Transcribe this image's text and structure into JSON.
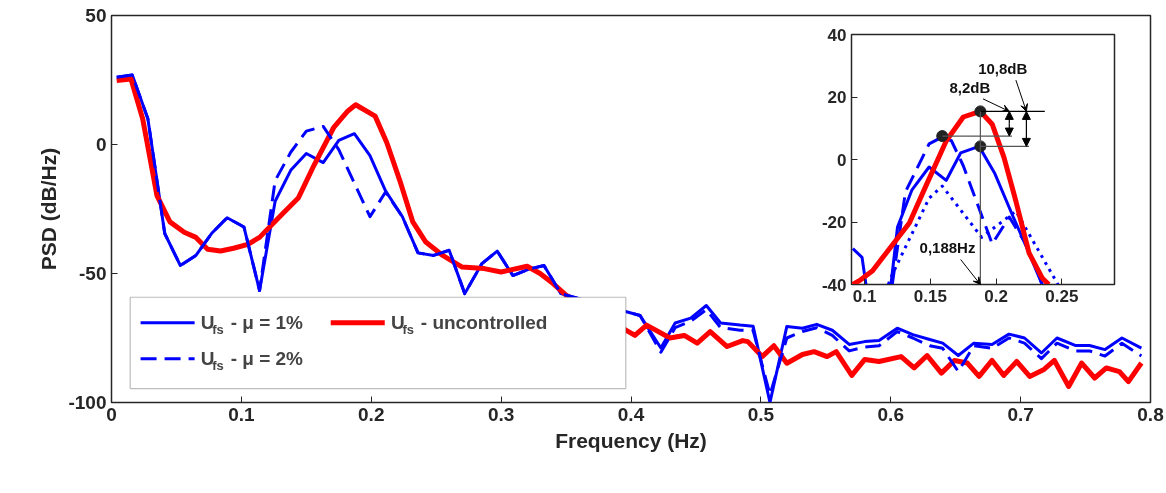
{
  "chart_data": [
    {
      "type": "line",
      "xlabel": "Frequency (Hz)",
      "ylabel": "PSD (dB/Hz)",
      "xlim": [
        0,
        0.8
      ],
      "ylim": [
        -100,
        50
      ],
      "xticks": [
        0,
        0.1,
        0.2,
        0.3,
        0.4,
        0.5,
        0.6,
        0.7,
        0.8
      ],
      "yticks": [
        -100,
        -50,
        0,
        50
      ],
      "grid": false,
      "legend": "bottom left",
      "marker": "none",
      "series": [
        {
          "name": "U$_{fs}$ - μ = 1%",
          "color": "#0000ff",
          "line_style": "solid",
          "x": [
            0.004,
            0.016,
            0.028,
            0.041,
            0.053,
            0.065,
            0.077,
            0.089,
            0.102,
            0.114,
            0.126,
            0.138,
            0.15,
            0.163,
            0.175,
            0.187,
            0.199,
            0.211,
            0.224,
            0.236,
            0.248,
            0.26,
            0.272,
            0.285,
            0.297,
            0.309,
            0.321,
            0.333,
            0.346,
            0.407,
            0.423,
            0.434,
            0.446,
            0.458,
            0.469,
            0.484,
            0.494,
            0.507,
            0.52,
            0.532,
            0.543,
            0.555,
            0.568,
            0.58,
            0.591,
            0.605,
            0.617,
            0.63,
            0.64,
            0.652,
            0.664,
            0.678,
            0.691,
            0.703,
            0.716,
            0.728,
            0.742,
            0.753,
            0.765,
            0.778,
            0.793
          ],
          "values": [
            26.1,
            26.9,
            10,
            -34.5,
            -46.9,
            -43,
            -34.5,
            -28.4,
            -32,
            -56.6,
            -22,
            -10,
            -3.5,
            -7,
            1.6,
            4.2,
            -4.3,
            -18,
            -28,
            -42,
            -43,
            -41,
            -57.8,
            -46.3,
            -41.3,
            -50.8,
            -48.4,
            -46.9,
            -57.8,
            -66.3,
            -78.9,
            -69.2,
            -67.3,
            -62.4,
            -69.2,
            -70,
            -70.4,
            -100,
            -70.5,
            -71.2,
            -69.7,
            -72,
            -77.5,
            -76.4,
            -76,
            -71.2,
            -73.7,
            -75.6,
            -77,
            -81.8,
            -77,
            -77.5,
            -73.5,
            -75,
            -80.8,
            -75,
            -77.9,
            -77.9,
            -79.5,
            -75,
            -78.9
          ]
        },
        {
          "name": "U$_{fs}$ - uncontrolled",
          "color": "#ff0000",
          "line_style": "solid",
          "x": [
            0.004,
            0.015,
            0.024,
            0.035,
            0.045,
            0.056,
            0.065,
            0.074,
            0.084,
            0.094,
            0.105,
            0.114,
            0.13,
            0.144,
            0.155,
            0.171,
            0.182,
            0.188,
            0.203,
            0.212,
            0.222,
            0.232,
            0.242,
            0.255,
            0.27,
            0.287,
            0.3,
            0.32,
            0.33,
            0.34,
            0.35,
            0.403,
            0.412,
            0.43,
            0.441,
            0.451,
            0.461,
            0.474,
            0.486,
            0.49,
            0.501,
            0.51,
            0.52,
            0.532,
            0.541,
            0.551,
            0.558,
            0.57,
            0.58,
            0.591,
            0.608,
            0.618,
            0.628,
            0.639,
            0.649,
            0.659,
            0.668,
            0.678,
            0.687,
            0.697,
            0.707,
            0.718,
            0.726,
            0.737,
            0.747,
            0.757,
            0.766,
            0.776,
            0.783,
            0.793
          ],
          "values": [
            24.8,
            25.4,
            10,
            -19.8,
            -30,
            -34,
            -36,
            -40.6,
            -41.3,
            -40.2,
            -38.7,
            -36,
            -27.7,
            -20.6,
            -9,
            6.5,
            13,
            15.4,
            11,
            0.7,
            -14,
            -30,
            -37.8,
            -43,
            -47.5,
            -48.1,
            -49.4,
            -47.2,
            -50,
            -53.9,
            -58.4,
            -74,
            -70,
            -75,
            -74,
            -77,
            -72.5,
            -78.3,
            -76,
            -76.4,
            -82.2,
            -78,
            -84.8,
            -81.4,
            -80.3,
            -82.2,
            -80.3,
            -89.5,
            -83.3,
            -84.1,
            -82.2,
            -86.6,
            -81.8,
            -88.6,
            -83.7,
            -84.7,
            -89.9,
            -83.7,
            -89.5,
            -84.1,
            -89.9,
            -87.2,
            -83.7,
            -93.8,
            -84.7,
            -90.5,
            -86.6,
            -88,
            -91.9,
            -84.7
          ]
        },
        {
          "name": "U$_{fs}$ - μ = 2%",
          "color": "#0000ff",
          "line_style": "dashed",
          "x": [
            0.004,
            0.016,
            0.028,
            0.041,
            0.053,
            0.065,
            0.077,
            0.089,
            0.102,
            0.114,
            0.126,
            0.138,
            0.15,
            0.163,
            0.175,
            0.187,
            0.199,
            0.211,
            0.224,
            0.236,
            0.248,
            0.26,
            0.272,
            0.285,
            0.297,
            0.309,
            0.321,
            0.333,
            0.346,
            0.407,
            0.423,
            0.434,
            0.446,
            0.458,
            0.469,
            0.484,
            0.494,
            0.507,
            0.52,
            0.532,
            0.543,
            0.555,
            0.568,
            0.58,
            0.591,
            0.605,
            0.617,
            0.63,
            0.64,
            0.652,
            0.664,
            0.678,
            0.691,
            0.703,
            0.716,
            0.728,
            0.742,
            0.753,
            0.765,
            0.778,
            0.793
          ],
          "values": [
            26.1,
            26.9,
            10,
            -34.5,
            -46.9,
            -43,
            -34.5,
            -28.4,
            -32,
            -56.6,
            -14,
            -3,
            5.2,
            7,
            -2,
            -15,
            -28,
            -18.4,
            -28,
            -42,
            -43,
            -41,
            -57.8,
            -46.3,
            -41.3,
            -50.8,
            -48.4,
            -46.9,
            -57.8,
            -66.3,
            -80.5,
            -71,
            -68.5,
            -64,
            -71,
            -72,
            -72,
            -97,
            -75,
            -72.5,
            -71,
            -74,
            -80,
            -78.5,
            -78,
            -72.5,
            -75,
            -78,
            -79,
            -88,
            -78,
            -79,
            -75,
            -77,
            -83,
            -77,
            -80,
            -80,
            -82,
            -77,
            -82
          ]
        }
      ]
    },
    {
      "type": "line",
      "xlim": [
        0.09,
        0.29
      ],
      "ylim": [
        -40,
        40
      ],
      "xticks": [
        0.1,
        0.15,
        0.2,
        0.25
      ],
      "yticks": [
        -40,
        -20,
        0,
        20,
        40
      ],
      "grid": false,
      "annotations": [
        "8,2dB",
        "10,8dB",
        "0,188Hz"
      ],
      "series": [
        {
          "color": "#0000ff",
          "line_style": "solid",
          "marker": "none",
          "x": [
            0.091,
            0.098,
            0.101,
            null,
            0.12,
            0.125,
            0.136,
            0.149,
            0.162,
            0.173,
            0.187,
            0.199,
            0.213,
            0.223,
            0.235
          ],
          "values": [
            -28.5,
            -31.3,
            -40,
            null,
            -40,
            -21.6,
            -9.7,
            -2.4,
            -6.7,
            2.1,
            4.2,
            -4.5,
            -18.4,
            -28,
            -40
          ]
        },
        {
          "color": "#0000ff",
          "line_style": "dashed",
          "marker": "none",
          "x": [
            0.121,
            0.131,
            0.149,
            0.159,
            0.166,
            0.175,
            0.197,
            0.21,
            0.224,
            0.235
          ],
          "values": [
            -40,
            -10.4,
            5,
            7.2,
            6,
            -2,
            -27,
            -18.4,
            -28,
            -40
          ]
        },
        {
          "color": "#0000ff",
          "line_style": "dotted",
          "marker": "none",
          "x": [
            0.118,
            0.12,
            0.149,
            0.159,
            0.189,
            0.215,
            0.247
          ],
          "values": [
            -40,
            -37.7,
            -12.4,
            -8.5,
            -24.9,
            -16.5,
            -40
          ]
        },
        {
          "color": "#ff0000",
          "line_style": "solid",
          "marker": "none",
          "x": [
            0.091,
            0.097,
            0.106,
            0.134,
            0.146,
            0.162,
            0.175,
            0.188,
            0.197,
            0.206,
            0.215,
            0.225,
            0.235,
            0.24
          ],
          "values": [
            -40,
            -38.5,
            -35.6,
            -20.3,
            -9,
            5.9,
            13.6,
            15.4,
            11.3,
            0.6,
            -13.3,
            -29.9,
            -37.9,
            -40
          ]
        },
        {
          "type": "scatter",
          "color": "#222222",
          "marker": "circle",
          "x": [
            0.188,
            0.159,
            0.188
          ],
          "values": [
            15.4,
            7.5,
            4.2
          ]
        }
      ]
    }
  ]
}
